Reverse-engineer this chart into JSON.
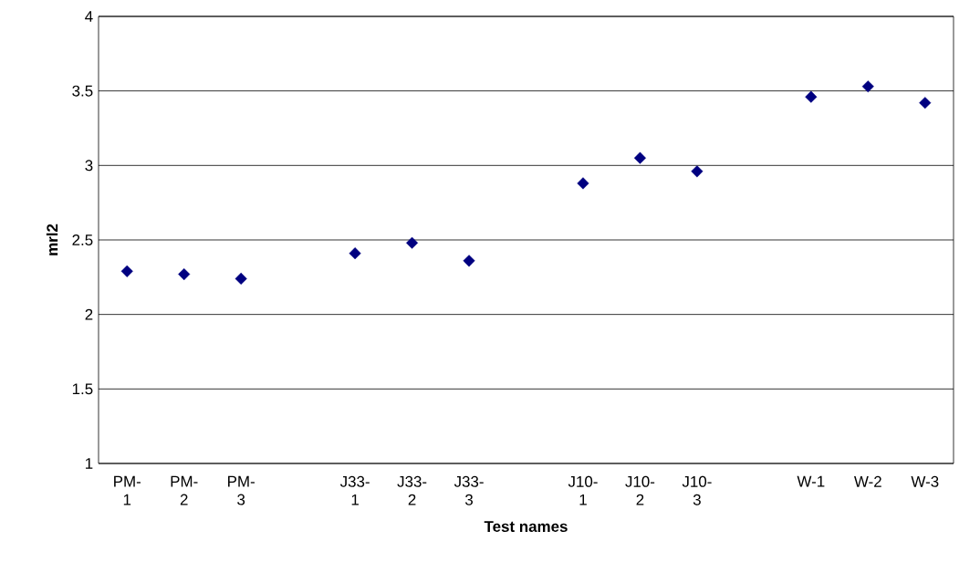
{
  "chart_data": {
    "type": "scatter",
    "xlabel": "Test names",
    "ylabel": "mrl2",
    "categories": [
      "PM-1",
      "PM-2",
      "PM-3",
      null,
      "J33-1",
      "J33-2",
      "J33-3",
      null,
      "J10-1",
      "J10-2",
      "J10-3",
      null,
      "W-1",
      "W-2",
      "W-3"
    ],
    "series": [
      {
        "color": "#000080",
        "values": [
          2.29,
          2.27,
          2.24,
          null,
          2.41,
          2.48,
          2.36,
          null,
          2.88,
          3.05,
          2.96,
          null,
          3.46,
          3.53,
          3.42
        ]
      }
    ],
    "ylim": [
      1,
      4
    ],
    "yticks": [
      1,
      1.5,
      2,
      2.5,
      3,
      3.5,
      4
    ],
    "grid": "y",
    "marker": "diamond"
  }
}
